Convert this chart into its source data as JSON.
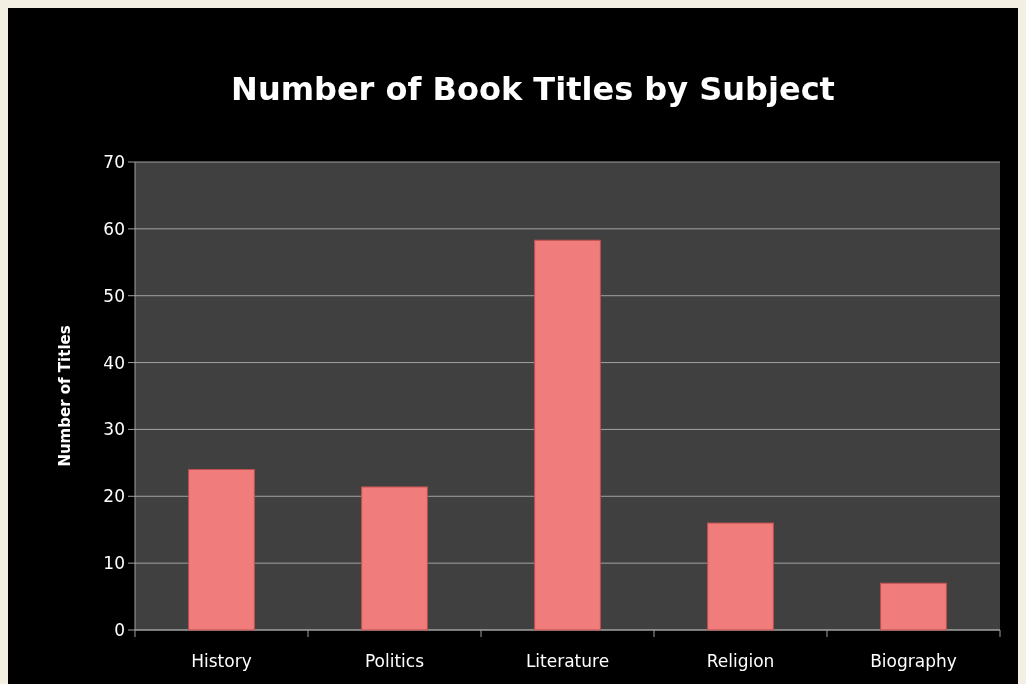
{
  "chart_data": {
    "type": "bar",
    "title": "Number of Book Titles by Subject",
    "ylabel": "Number of Titles",
    "categories": [
      "History",
      "Politics",
      "Literature",
      "Religion",
      "Biography"
    ],
    "values": [
      24,
      21.4,
      58.3,
      16,
      7
    ],
    "color": "#f07c7c",
    "ylim": [
      0,
      70
    ],
    "yticks": [
      0,
      10,
      20,
      30,
      40,
      50,
      60,
      70
    ],
    "grid": "y"
  }
}
